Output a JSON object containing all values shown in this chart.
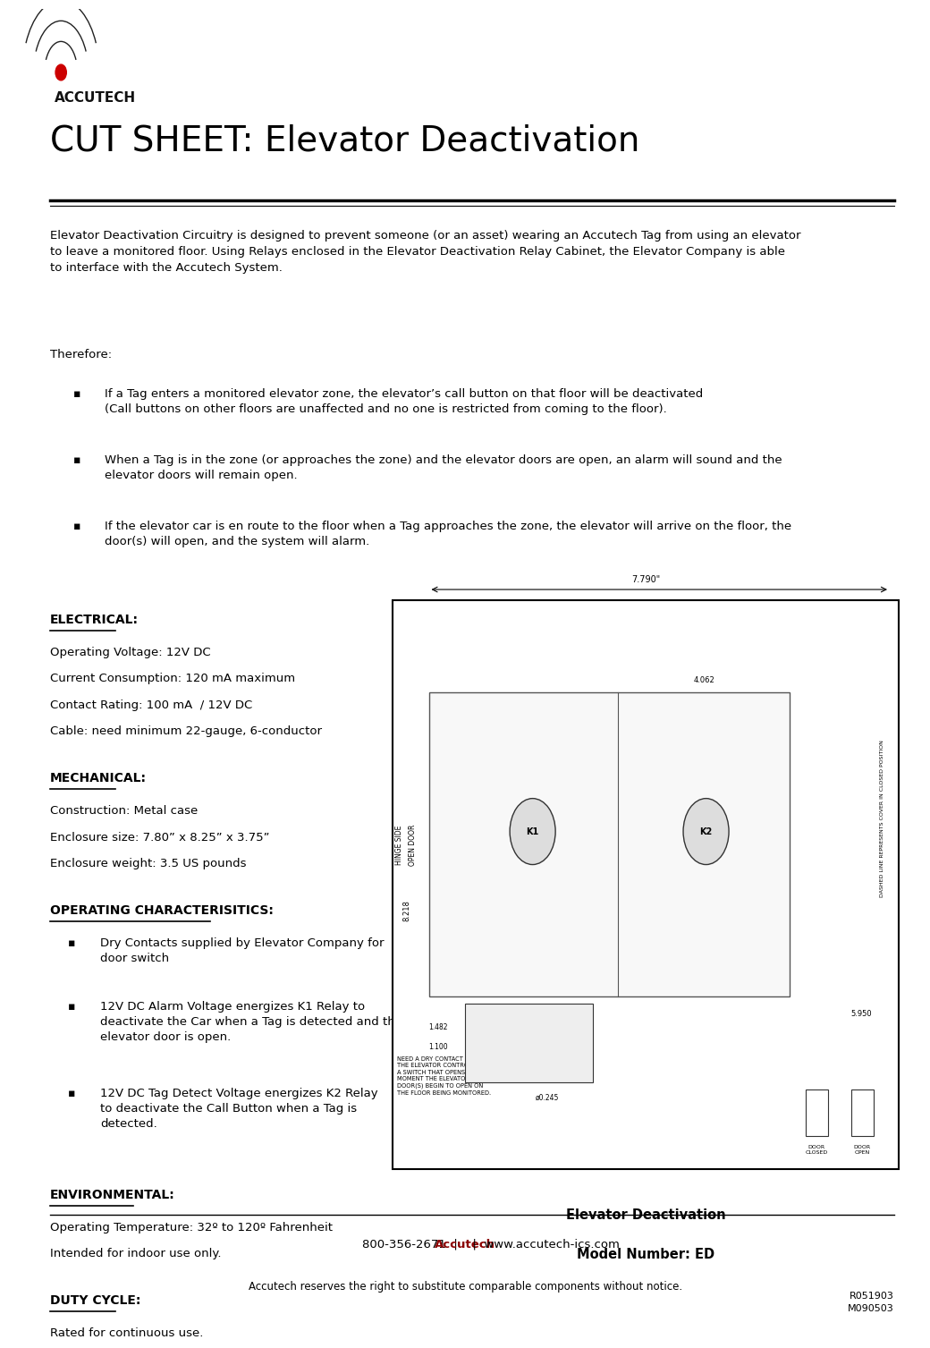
{
  "page_width": 10.69,
  "page_height": 14.88,
  "bg_color": "#ffffff",
  "logo_text": "ACCUTECH",
  "title": "CUT SHEET: Elevator Deactivation",
  "title_fontsize": 28,
  "header_line_color": "#000000",
  "body_text_color": "#000000",
  "accent_color": "#8B0000",
  "intro_paragraph": "Elevator Deactivation Circuitry is designed to prevent someone (or an asset) wearing an Accutech Tag from using an elevator\nto leave a monitored floor. Using Relays enclosed in the Elevator Deactivation Relay Cabinet, the Elevator Company is able\nto interface with the Accutech System.",
  "therefore_label": "Therefore:",
  "bullet_points": [
    "If a Tag enters a monitored elevator zone, the elevator’s call button on that floor will be deactivated\n(Call buttons on other floors are unaffected and no one is restricted from coming to the floor).",
    "When a Tag is in the zone (or approaches the zone) and the elevator doors are open, an alarm will sound and the\nelevator doors will remain open.",
    "If the elevator car is en route to the floor when a Tag approaches the zone, the elevator will arrive on the floor, the\ndoor(s) will open, and the system will alarm."
  ],
  "electrical_header": "ELECTRICAL:",
  "electrical_lines": [
    "Operating Voltage: 12V DC",
    "Current Consumption: 120 mA maximum",
    "Contact Rating: 100 mA  / 12V DC",
    "Cable: need minimum 22-gauge, 6-conductor"
  ],
  "mechanical_header": "MECHANICAL:",
  "mechanical_lines": [
    "Construction: Metal case",
    "Enclosure size: 7.80” x 8.25” x 3.75”",
    "Enclosure weight: 3.5 US pounds"
  ],
  "operating_header": "OPERATING CHARACTERISITICS:",
  "operating_bullets": [
    "Dry Contacts supplied by Elevator Company for\ndoor switch",
    "12V DC Alarm Voltage energizes K1 Relay to\ndeactivate the Car when a Tag is detected and the\nelevator door is open.",
    "12V DC Tag Detect Voltage energizes K2 Relay\nto deactivate the Call Button when a Tag is\ndetected."
  ],
  "environmental_header": "ENVIRONMENTAL:",
  "environmental_lines": [
    "Operating Temperature: 32º to 120º Fahrenheit",
    "Intended for indoor use only."
  ],
  "duty_header": "DUTY CYCLE:",
  "duty_lines": [
    "Rated for continuous use."
  ],
  "diagram_caption1": "Elevator Deactivation",
  "diagram_caption2": "Model Number: ED",
  "footer_line1_parts": [
    "800-356-2671  |  ",
    "Accutech",
    "  |  www.accutech-ics.com"
  ],
  "footer_line2": "Accutech reserves the right to substitute comparable components without notice.",
  "footer_codes": "R051903\nM090503",
  "footer_line_color": "#000000"
}
